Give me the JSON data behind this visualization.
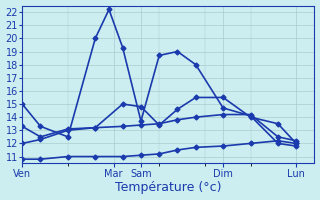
{
  "background_color": "#cceef0",
  "grid_color": "#aacccc",
  "line_color": "#1a3aad",
  "xlabel": "Température (°c)",
  "ylim": [
    10.5,
    22.5
  ],
  "yticks": [
    11,
    12,
    13,
    14,
    15,
    16,
    17,
    18,
    19,
    20,
    21,
    22
  ],
  "xtick_labels": [
    "Ven",
    "Mar",
    "Sam",
    "Dim",
    "Lun"
  ],
  "xtick_positions": [
    0,
    10,
    13,
    22,
    30
  ],
  "xlim": [
    0,
    32
  ],
  "series": [
    {
      "x": [
        0,
        2,
        5,
        8,
        9.5,
        11,
        13,
        15,
        17,
        19,
        22,
        25,
        28,
        30
      ],
      "y": [
        15.0,
        13.3,
        12.5,
        20.0,
        22.2,
        19.3,
        13.7,
        18.7,
        19.0,
        18.0,
        14.7,
        14.1,
        12.0,
        11.8
      ]
    },
    {
      "x": [
        0,
        2,
        5,
        8,
        11,
        13,
        15,
        17,
        19,
        22,
        25,
        28,
        30
      ],
      "y": [
        13.3,
        12.5,
        13.1,
        13.2,
        15.0,
        14.8,
        13.4,
        14.6,
        15.5,
        15.5,
        14.0,
        13.5,
        12.0
      ]
    },
    {
      "x": [
        0,
        2,
        5,
        8,
        11,
        13,
        15,
        17,
        19,
        22,
        25,
        28,
        30
      ],
      "y": [
        10.8,
        10.8,
        11.0,
        11.0,
        11.0,
        11.1,
        11.2,
        11.5,
        11.7,
        11.8,
        12.0,
        12.2,
        12.0
      ]
    },
    {
      "x": [
        0,
        2,
        5,
        8,
        11,
        13,
        15,
        17,
        19,
        22,
        25,
        28,
        30
      ],
      "y": [
        12.0,
        12.3,
        13.0,
        13.2,
        13.3,
        13.4,
        13.5,
        13.8,
        14.0,
        14.2,
        14.2,
        12.5,
        12.2
      ]
    }
  ],
  "marker": "D",
  "markersize": 2.5,
  "linewidth": 1.2,
  "xlabel_fontsize": 9,
  "tick_fontsize": 7
}
